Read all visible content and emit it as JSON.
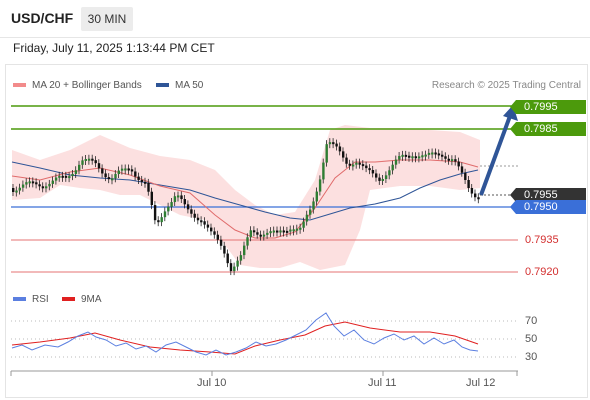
{
  "header": {
    "symbol": "USD/CHF",
    "timeframe": "30 MIN"
  },
  "datetime": "Friday, July 11, 2025 1:13:44 PM CET",
  "legend": {
    "ma20_label": "MA 20 + Bollinger Bands",
    "ma50_label": "MA 50",
    "ma20_color": "#f28b8b",
    "ma50_color": "#2f5597",
    "research": "Research © 2025 Trading Central"
  },
  "levels": {
    "target_high": "0.7995",
    "target_low": "0.7985",
    "current": "0.7955",
    "pivot": "0.7950",
    "support1": "0.7935",
    "support2": "0.7920",
    "resistance_color": "#4c9a0c",
    "pivot_color": "#3a6fd8",
    "support_color": "#d32f2f",
    "current_color": "#333333"
  },
  "rsi": {
    "rsi_label": "RSI",
    "ma_label": "9MA",
    "rsi_color": "#5b7fe0",
    "ma_color": "#e02020",
    "levels": [
      "70",
      "50",
      "30"
    ]
  },
  "x_axis": {
    "labels": [
      "Jul 10",
      "Jul 11",
      "Jul 12"
    ]
  }
}
